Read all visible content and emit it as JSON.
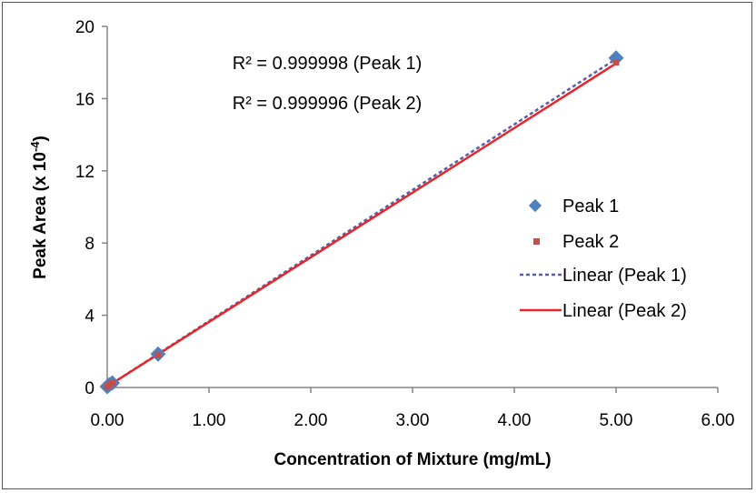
{
  "colors": {
    "peak1_marker": "#4f81bd",
    "peak2_marker": "#c0504d",
    "peak1_line": "#5b5ea6",
    "peak2_line": "#e8262a",
    "axis": "#868686"
  },
  "chart_data": {
    "type": "scatter",
    "xlabel": "Concentration of Mixture (mg/mL)",
    "ylabel_main": "Peak Area (x 10",
    "ylabel_exp": "-4",
    "ylabel_close": ")",
    "xlim": [
      0,
      6
    ],
    "ylim": [
      0,
      20
    ],
    "xticks": [
      0,
      1,
      2,
      3,
      4,
      5,
      6
    ],
    "xtick_labels": [
      "0.00",
      "1.00",
      "2.00",
      "3.00",
      "4.00",
      "5.00",
      "6.00"
    ],
    "yticks": [
      0,
      4,
      8,
      12,
      16,
      20
    ],
    "ytick_labels": [
      "0",
      "4",
      "8",
      "12",
      "16",
      "20"
    ],
    "grid": false,
    "legend_position": "right",
    "series": [
      {
        "name": "Peak 1",
        "marker": "diamond",
        "x": [
          0.0,
          0.02,
          0.05,
          0.5,
          5.0
        ],
        "y": [
          0.05,
          0.15,
          0.25,
          1.85,
          18.25
        ]
      },
      {
        "name": "Peak 2",
        "marker": "square",
        "x": [
          0.0,
          0.02,
          0.05,
          0.5,
          5.0
        ],
        "y": [
          0.05,
          0.15,
          0.25,
          1.8,
          18.0
        ]
      }
    ],
    "trendlines": [
      {
        "name": "Linear (Peak 1)",
        "x": [
          0.0,
          5.0
        ],
        "y": [
          0.05,
          18.2
        ],
        "style": "dashed"
      },
      {
        "name": "Linear (Peak 2)",
        "x": [
          0.0,
          5.0
        ],
        "y": [
          0.05,
          17.95
        ],
        "style": "solid"
      }
    ],
    "annotations": [
      "R² = 0.999998 (Peak 1)",
      "R² = 0.999996 (Peak 2)"
    ]
  }
}
